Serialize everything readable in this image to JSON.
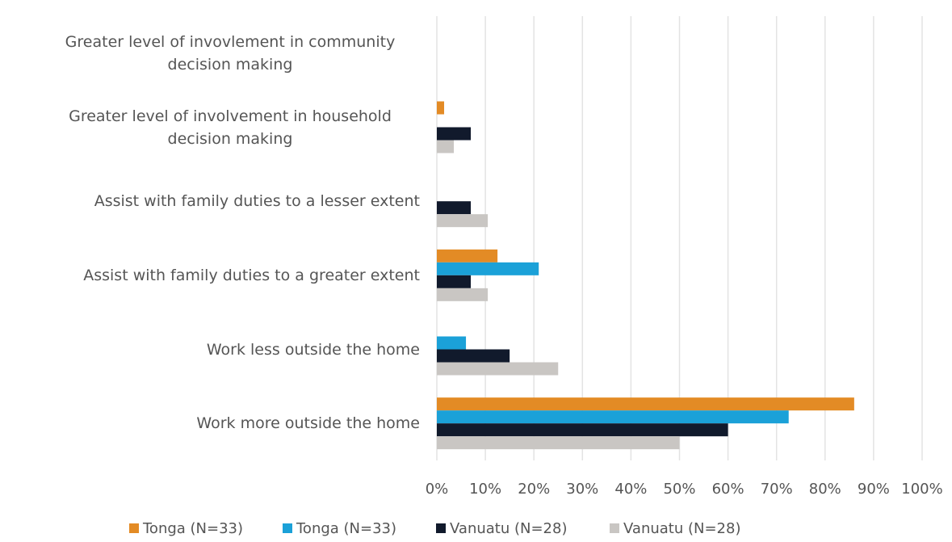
{
  "chart_data": {
    "type": "barh",
    "categories": [
      "Greater level of invovlement in community decision making",
      "Greater level of involvement in household decision making",
      "Assist with family duties to a lesser extent",
      "Assist with family duties to a greater extent",
      "Work less outside the home",
      "Work more outside the home"
    ],
    "series": [
      {
        "name": "Tonga (N=33)",
        "color": "#e38b25",
        "values": [
          0,
          1.5,
          0,
          12.5,
          0,
          86
        ]
      },
      {
        "name": "Tonga (N=33)",
        "color": "#1ba1d8",
        "values": [
          0,
          0,
          0,
          21,
          6,
          72.5
        ]
      },
      {
        "name": "Vanuatu (N=28)",
        "color": "#111a2c",
        "values": [
          0,
          7,
          7,
          7,
          15,
          60
        ]
      },
      {
        "name": "Vanuatu (N=28)",
        "color": "#c9c6c3",
        "values": [
          0,
          3.5,
          10.5,
          10.5,
          25,
          50
        ]
      }
    ],
    "xlim": [
      0,
      100
    ],
    "xticks": [
      {
        "value": 0,
        "label": "0%"
      },
      {
        "value": 10,
        "label": "10%"
      },
      {
        "value": 20,
        "label": "20%"
      },
      {
        "value": 30,
        "label": "30%"
      },
      {
        "value": 40,
        "label": "40%"
      },
      {
        "value": 50,
        "label": "50%"
      },
      {
        "value": 60,
        "label": "60%"
      },
      {
        "value": 70,
        "label": "70%"
      },
      {
        "value": 80,
        "label": "80%"
      },
      {
        "value": 90,
        "label": "90%"
      },
      {
        "value": 100,
        "label": "100%"
      }
    ],
    "grid": true,
    "legend": "bottom"
  }
}
